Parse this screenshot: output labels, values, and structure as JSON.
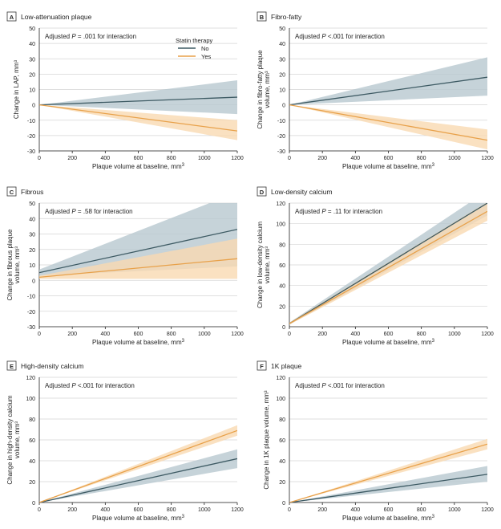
{
  "figure": {
    "x_range": [
      0,
      1200
    ],
    "x_ticks": [
      0,
      200,
      400,
      600,
      800,
      1000,
      1200
    ],
    "legend": {
      "title": "Statin therapy",
      "entries": [
        {
          "label": "No",
          "color": "#3d5a63"
        },
        {
          "label": "Yes",
          "color": "#e8a14a"
        }
      ]
    },
    "band_colors": {
      "No": "#b8c8cf",
      "Yes": "#f9d9b2"
    }
  },
  "chart_data": [
    {
      "type": "line",
      "panel_letter": "A",
      "title": "Low-attenuation plaque",
      "annotation_prefix": "Adjusted ",
      "annotation_p": "P",
      "annotation_suffix": " = .001 for interaction",
      "xlabel": "Plaque volume at baseline, mm",
      "xlabel_sup": "3",
      "ylabel": [
        "Change in LAP, mm³"
      ],
      "ylim": [
        -30,
        50
      ],
      "yticks": [
        50,
        40,
        30,
        20,
        10,
        0,
        -10,
        -20,
        -30
      ],
      "x": [
        0,
        1200
      ],
      "series": [
        {
          "name": "No",
          "values": [
            0,
            5
          ],
          "lower": [
            0,
            -6
          ],
          "upper": [
            0,
            16
          ]
        },
        {
          "name": "Yes",
          "values": [
            0,
            -17
          ],
          "lower": [
            0,
            -23
          ],
          "upper": [
            0,
            -10
          ]
        }
      ]
    },
    {
      "type": "line",
      "panel_letter": "B",
      "title": "Fibro-fatty",
      "annotation_prefix": "Adjusted ",
      "annotation_p": "P",
      "annotation_suffix": " <.001 for interaction",
      "xlabel": "Plaque volume at baseline, mm",
      "xlabel_sup": "3",
      "ylabel": [
        "Change in fibro-fatty plaque",
        "volume, mm³"
      ],
      "ylim": [
        -30,
        50
      ],
      "yticks": [
        50,
        40,
        30,
        20,
        10,
        0,
        -10,
        -20,
        -30
      ],
      "x": [
        0,
        1200
      ],
      "series": [
        {
          "name": "No",
          "values": [
            0,
            18
          ],
          "lower": [
            0,
            6
          ],
          "upper": [
            0,
            31
          ]
        },
        {
          "name": "Yes",
          "values": [
            0,
            -23
          ],
          "lower": [
            0,
            -29
          ],
          "upper": [
            0,
            -16
          ]
        }
      ]
    },
    {
      "type": "line",
      "panel_letter": "C",
      "title": "Fibrous",
      "annotation_prefix": "Adjusted ",
      "annotation_p": "P",
      "annotation_suffix": " = .58 for interaction",
      "xlabel": "Plaque volume at baseline, mm",
      "xlabel_sup": "3",
      "ylabel": [
        "Change in fibrous plaque",
        "volume, mm³"
      ],
      "ylim": [
        -30,
        50
      ],
      "yticks": [
        50,
        40,
        30,
        20,
        10,
        0,
        -10,
        -20,
        -30
      ],
      "x": [
        0,
        1200
      ],
      "series": [
        {
          "name": "No",
          "values": [
            5,
            33
          ],
          "lower": [
            3,
            9
          ],
          "upper": [
            7,
            57
          ]
        },
        {
          "name": "Yes",
          "values": [
            2,
            14
          ],
          "lower": [
            1,
            1
          ],
          "upper": [
            3,
            27
          ]
        }
      ]
    },
    {
      "type": "line",
      "panel_letter": "D",
      "title": "Low-density calcium",
      "annotation_prefix": "Adjusted ",
      "annotation_p": "P",
      "annotation_suffix": " = .11 for interaction",
      "xlabel": "Plaque volume at baseline, mm",
      "xlabel_sup": "3",
      "ylabel": [
        "Change in low-density calcium",
        "volume, mm³"
      ],
      "ylim": [
        0,
        120
      ],
      "yticks": [
        120,
        100,
        80,
        60,
        40,
        20,
        0
      ],
      "x": [
        0,
        1200
      ],
      "series": [
        {
          "name": "No",
          "values": [
            3,
            120
          ],
          "lower": [
            2,
            108
          ],
          "upper": [
            4,
            132
          ]
        },
        {
          "name": "Yes",
          "values": [
            3,
            112
          ],
          "lower": [
            2,
            103
          ],
          "upper": [
            4,
            121
          ]
        }
      ]
    },
    {
      "type": "line",
      "panel_letter": "E",
      "title": "High-density calcium",
      "annotation_prefix": "Adjusted ",
      "annotation_p": "P",
      "annotation_suffix": " <.001 for interaction",
      "xlabel": "Plaque volume at baseline, mm",
      "xlabel_sup": "3",
      "ylabel": [
        "Change in high-density calcium",
        "volume, mm³"
      ],
      "ylim": [
        0,
        120
      ],
      "yticks": [
        120,
        100,
        80,
        60,
        40,
        20,
        0
      ],
      "x": [
        0,
        1200
      ],
      "series": [
        {
          "name": "No",
          "values": [
            0,
            42
          ],
          "lower": [
            0,
            33
          ],
          "upper": [
            0,
            51
          ]
        },
        {
          "name": "Yes",
          "values": [
            0,
            69
          ],
          "lower": [
            0,
            64
          ],
          "upper": [
            0,
            74
          ]
        }
      ]
    },
    {
      "type": "line",
      "panel_letter": "F",
      "title": "1K plaque",
      "annotation_prefix": "Adjusted ",
      "annotation_p": "P",
      "annotation_suffix": " <.001 for interaction",
      "xlabel": "Plaque volume at baseline, mm",
      "xlabel_sup": "3",
      "ylabel": [
        "Change in 1K plaque volume, mm³"
      ],
      "ylim": [
        0,
        120
      ],
      "yticks": [
        120,
        100,
        80,
        60,
        40,
        20,
        0
      ],
      "x": [
        0,
        1200
      ],
      "series": [
        {
          "name": "No",
          "values": [
            0,
            27
          ],
          "lower": [
            0,
            20
          ],
          "upper": [
            0,
            35
          ]
        },
        {
          "name": "Yes",
          "values": [
            0,
            56
          ],
          "lower": [
            0,
            51
          ],
          "upper": [
            0,
            61
          ]
        }
      ]
    }
  ]
}
